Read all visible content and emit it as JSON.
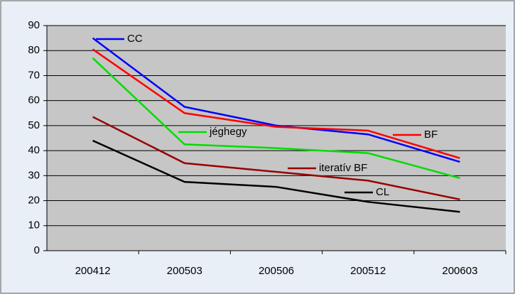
{
  "chart_data": {
    "type": "line",
    "categories": [
      "200412",
      "200503",
      "200506",
      "200512",
      "200603"
    ],
    "ylim": [
      0,
      90
    ],
    "yticks": [
      0,
      10,
      20,
      30,
      40,
      50,
      60,
      70,
      80,
      90
    ],
    "grid": true,
    "series": [
      {
        "name": "CC",
        "color": "#0000ff",
        "values": [
          85,
          57.5,
          50,
          46.5,
          35.5
        ]
      },
      {
        "name": "BF",
        "color": "#ff0000",
        "values": [
          80.5,
          55,
          49.5,
          48,
          37
        ]
      },
      {
        "name": "jéghegy",
        "color": "#00dd00",
        "values": [
          77,
          42.5,
          41,
          39,
          29
        ]
      },
      {
        "name": "iteratív BF",
        "color": "#990000",
        "values": [
          53.5,
          35,
          31.5,
          28,
          20.5
        ]
      },
      {
        "name": "CL",
        "color": "#000000",
        "values": [
          44,
          27.5,
          25.5,
          19.5,
          15.5
        ]
      }
    ]
  }
}
